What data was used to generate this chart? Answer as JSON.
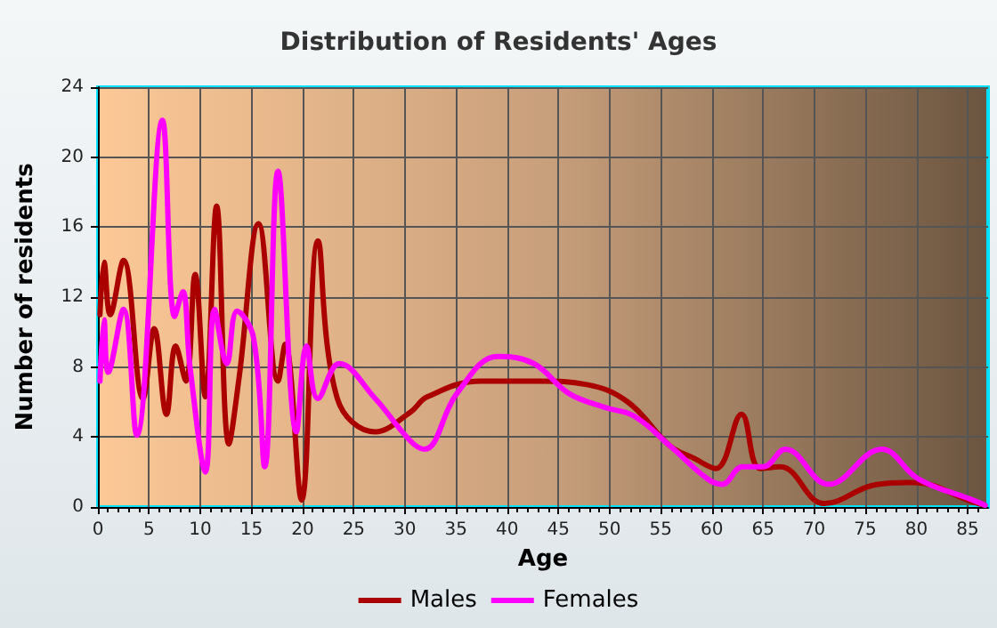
{
  "chart_data": {
    "type": "line",
    "title": "Distribution of Residents' Ages",
    "xlabel": "Age",
    "ylabel": "Number of residents",
    "xlim": [
      0,
      87
    ],
    "xticks": [
      0,
      5,
      10,
      15,
      20,
      25,
      30,
      35,
      40,
      45,
      50,
      55,
      60,
      65,
      70,
      75,
      80,
      85
    ],
    "ylim": [
      0,
      24
    ],
    "yticks": [
      0,
      4,
      8,
      12,
      16,
      20,
      24
    ],
    "grid": true,
    "legend": "bottom",
    "marker": "none",
    "line_style": "solid",
    "series": [
      {
        "name": "Males",
        "color": "#aa0000",
        "x": [
          0.2,
          0.6,
          1.2,
          2.5,
          4.4,
          5.5,
          6.7,
          7.6,
          8.6,
          9.5,
          10.5,
          11.6,
          12.8,
          13.8,
          15.7,
          17.6,
          18.3,
          19.9,
          21.5,
          23.4,
          27.1,
          30.5,
          32.2,
          37.4,
          43.2,
          47.8,
          51.8,
          55.9,
          58.2,
          60.4,
          62.9,
          64.7,
          66.7,
          71.0,
          76.2,
          79.7,
          85.5,
          86.7
        ],
        "values": [
          11,
          14,
          11,
          14.1,
          6.2,
          10.2,
          5.3,
          9.2,
          7.2,
          13.3,
          6.3,
          17.2,
          3.6,
          7.4,
          16.2,
          7.2,
          9.3,
          0.4,
          15.2,
          6.2,
          4.3,
          5.4,
          6.3,
          7.2,
          7.2,
          7.0,
          6.0,
          3.5,
          2.8,
          2.2,
          5.3,
          2.2,
          2.3,
          0.2,
          1.3,
          1.4,
          0.3,
          0.1
        ]
      },
      {
        "name": "Females",
        "color": "#ff00ff",
        "x": [
          0.2,
          0.6,
          1.0,
          2.5,
          3.8,
          6.3,
          7.5,
          8.3,
          9.0,
          10.5,
          11.4,
          12.6,
          13.6,
          15.2,
          16.3,
          17.6,
          19.4,
          20.4,
          21.5,
          23.6,
          27.1,
          30.5,
          31.9,
          35.1,
          39.1,
          42.6,
          46.0,
          49.5,
          52.4,
          55.9,
          59.6,
          61.0,
          63.0,
          65.0,
          67.2,
          71.4,
          76.6,
          80.2,
          85.5,
          86.7
        ],
        "values": [
          7.2,
          10.7,
          7.7,
          11.3,
          4.1,
          22.1,
          10.9,
          12.3,
          8.0,
          2.0,
          11.3,
          8.2,
          11.2,
          9.7,
          2.3,
          19.2,
          4.3,
          9.2,
          6.2,
          8.2,
          6.2,
          3.8,
          3.3,
          6.5,
          8.6,
          8.2,
          6.5,
          5.7,
          5.2,
          3.5,
          1.6,
          1.3,
          2.3,
          2.3,
          3.3,
          1.3,
          3.3,
          1.6,
          0.4,
          0.1
        ]
      }
    ]
  }
}
